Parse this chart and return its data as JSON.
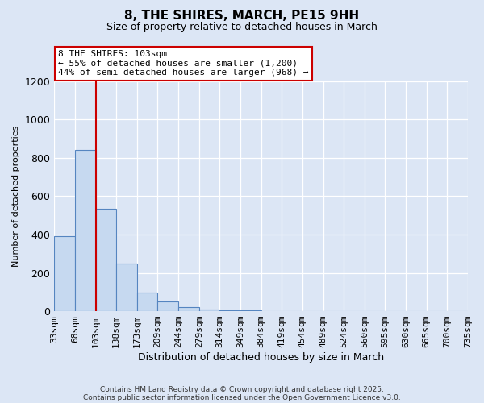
{
  "title": "8, THE SHIRES, MARCH, PE15 9HH",
  "subtitle": "Size of property relative to detached houses in March",
  "xlabel": "Distribution of detached houses by size in March",
  "ylabel": "Number of detached properties",
  "bar_values": [
    390,
    840,
    535,
    248,
    98,
    52,
    20,
    10,
    5,
    3,
    0,
    0,
    0,
    0,
    0,
    0,
    0,
    0,
    0,
    0
  ],
  "bin_labels": [
    "33sqm",
    "68sqm",
    "103sqm",
    "138sqm",
    "173sqm",
    "209sqm",
    "244sqm",
    "279sqm",
    "314sqm",
    "349sqm",
    "384sqm",
    "419sqm",
    "454sqm",
    "489sqm",
    "524sqm",
    "560sqm",
    "595sqm",
    "630sqm",
    "665sqm",
    "700sqm",
    "735sqm"
  ],
  "bar_color": "#c6d9f0",
  "bar_edge_color": "#5585c0",
  "vline_x": 2,
  "vline_color": "#cc0000",
  "annotation_title": "8 THE SHIRES: 103sqm",
  "annotation_line1": "← 55% of detached houses are smaller (1,200)",
  "annotation_line2": "44% of semi-detached houses are larger (968) →",
  "annotation_box_color": "#ffffff",
  "annotation_box_edge": "#cc0000",
  "ylim": [
    0,
    1200
  ],
  "yticks": [
    0,
    200,
    400,
    600,
    800,
    1000,
    1200
  ],
  "background_color": "#dce6f5",
  "grid_color": "#ffffff",
  "footer1": "Contains HM Land Registry data © Crown copyright and database right 2025.",
  "footer2": "Contains public sector information licensed under the Open Government Licence v3.0."
}
